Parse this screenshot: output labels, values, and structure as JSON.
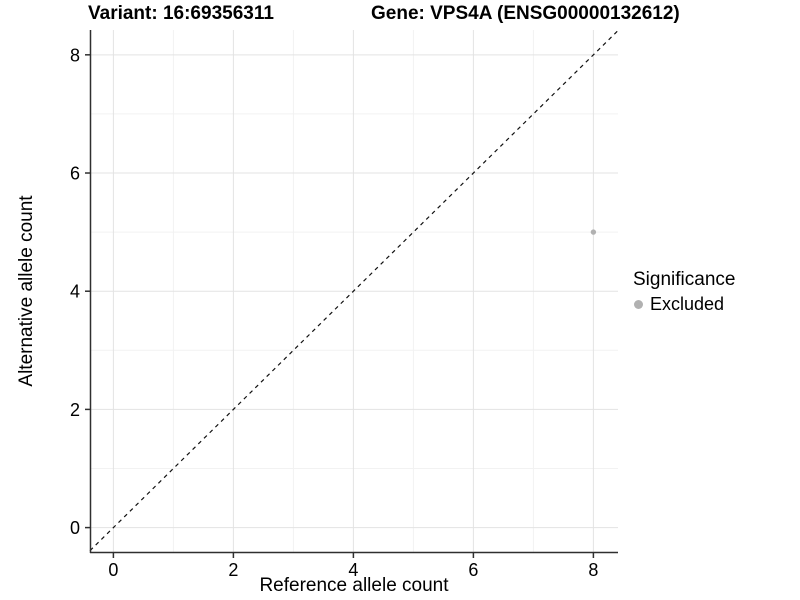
{
  "chart_data": {
    "type": "scatter",
    "titles": [
      "Variant: 16:69356311",
      "Gene: VPS4A (ENSG00000132612)"
    ],
    "xlabel": "Reference allele count",
    "ylabel": "Alternative allele count",
    "xlim": [
      -0.39,
      8.41
    ],
    "ylim": [
      -0.43,
      8.42
    ],
    "x_major_ticks": [
      0,
      2,
      4,
      6,
      8
    ],
    "y_major_ticks": [
      0,
      2,
      4,
      6,
      8
    ],
    "x_minor_gridlines": [
      1,
      3,
      5,
      7
    ],
    "y_minor_gridlines": [
      1,
      3,
      5,
      7
    ],
    "grid": "major+minor",
    "identity_line": {
      "equation": "y = x",
      "style": "dashed"
    },
    "series": [
      {
        "name": "Excluded",
        "color": "#b1b1b1",
        "points": [
          [
            8,
            5
          ]
        ]
      }
    ],
    "legend": {
      "title": "Significance",
      "position": "right",
      "entries": [
        {
          "label": "Excluded",
          "color": "#b1b1b1"
        }
      ]
    }
  },
  "colors": {
    "background": "#ffffff",
    "grid_major": "#e3e3e3",
    "grid_minor": "#f2f2f2",
    "axis_line": "#2f2f2f",
    "identity_line": "#111111",
    "tick_text": "#000000"
  }
}
